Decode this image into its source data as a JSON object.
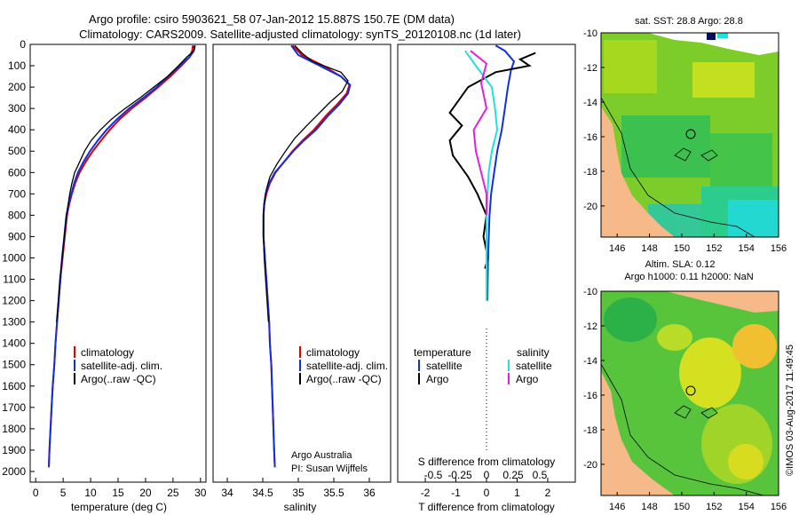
{
  "title": {
    "line1": "Argo profile: csiro 5903621_58 07-Jan-2012 15.887S 150.7E (DM data)",
    "line2": "Climatology: CARS2009. Satellite-adjusted climatology: synTS_20120108.nc (1d later)"
  },
  "colors": {
    "climatology": "#e00000",
    "satellite": "#1030e0",
    "argo": "#000000",
    "salinity_satellite": "#20e0e0",
    "salinity_argo": "#e020e0"
  },
  "chart_data": [
    {
      "type": "line",
      "id": "temperature",
      "xlabel": "temperature (deg C)",
      "ylabel": "",
      "xlim": [
        -1,
        31
      ],
      "ylim": [
        2050,
        0
      ],
      "xticks": [
        "0",
        "5",
        "10",
        "15",
        "20",
        "25",
        "30"
      ],
      "yticks": [
        "0",
        "100",
        "200",
        "300",
        "400",
        "500",
        "600",
        "700",
        "800",
        "900",
        "1000",
        "1100",
        "1200",
        "1300",
        "1400",
        "1500",
        "1600",
        "1700",
        "1800",
        "1900",
        "2000"
      ],
      "legend": [
        "climatology",
        "satellite-adj. clim.",
        "Argo(..raw -QC)"
      ],
      "series": [
        {
          "name": "climatology",
          "color": "#e00000",
          "points": [
            [
              28.6,
              5
            ],
            [
              28.5,
              30
            ],
            [
              28.0,
              60
            ],
            [
              26.5,
              100
            ],
            [
              24.5,
              150
            ],
            [
              22.3,
              200
            ],
            [
              20.0,
              250
            ],
            [
              17.5,
              300
            ],
            [
              15.3,
              350
            ],
            [
              13.5,
              400
            ],
            [
              11.9,
              450
            ],
            [
              10.4,
              500
            ],
            [
              9.1,
              550
            ],
            [
              8.0,
              600
            ],
            [
              7.2,
              650
            ],
            [
              6.6,
              700
            ],
            [
              6.1,
              750
            ],
            [
              5.7,
              800
            ],
            [
              5.3,
              900
            ],
            [
              4.9,
              1000
            ],
            [
              4.5,
              1100
            ],
            [
              4.2,
              1200
            ],
            [
              3.9,
              1300
            ],
            [
              3.6,
              1400
            ],
            [
              3.4,
              1500
            ],
            [
              3.1,
              1600
            ],
            [
              2.9,
              1700
            ],
            [
              2.7,
              1800
            ],
            [
              2.5,
              1900
            ],
            [
              2.4,
              1980
            ]
          ]
        },
        {
          "name": "satellite-adj. clim.",
          "color": "#1030e0",
          "points": [
            [
              29.0,
              5
            ],
            [
              28.8,
              30
            ],
            [
              28.0,
              60
            ],
            [
              26.2,
              100
            ],
            [
              24.1,
              150
            ],
            [
              22.0,
              200
            ],
            [
              19.6,
              250
            ],
            [
              17.0,
              300
            ],
            [
              14.8,
              350
            ],
            [
              12.9,
              400
            ],
            [
              11.3,
              450
            ],
            [
              9.9,
              500
            ],
            [
              8.7,
              550
            ],
            [
              7.7,
              600
            ],
            [
              7.0,
              650
            ],
            [
              6.5,
              700
            ],
            [
              6.0,
              750
            ],
            [
              5.6,
              800
            ],
            [
              5.2,
              900
            ],
            [
              4.8,
              1000
            ],
            [
              4.5,
              1100
            ],
            [
              4.2,
              1200
            ],
            [
              3.9,
              1300
            ],
            [
              3.6,
              1400
            ],
            [
              3.4,
              1500
            ],
            [
              3.1,
              1600
            ],
            [
              2.9,
              1700
            ],
            [
              2.7,
              1800
            ],
            [
              2.5,
              1900
            ],
            [
              2.4,
              1980
            ]
          ]
        },
        {
          "name": "Argo(..raw -QC)",
          "color": "#000000",
          "points": [
            [
              28.9,
              5
            ],
            [
              28.8,
              30
            ],
            [
              27.5,
              60
            ],
            [
              26.0,
              100
            ],
            [
              24.0,
              150
            ],
            [
              21.5,
              200
            ],
            [
              19.0,
              250
            ],
            [
              16.3,
              300
            ],
            [
              13.8,
              350
            ],
            [
              11.8,
              400
            ],
            [
              10.1,
              450
            ],
            [
              8.9,
              500
            ],
            [
              8.0,
              550
            ],
            [
              7.1,
              600
            ],
            [
              6.6,
              650
            ],
            [
              6.2,
              700
            ],
            [
              5.9,
              750
            ],
            [
              5.6,
              800
            ],
            [
              5.2,
              900
            ],
            [
              4.8,
              1000
            ],
            [
              4.4,
              1100
            ],
            [
              4.1,
              1200
            ],
            [
              3.8,
              1300
            ]
          ]
        }
      ]
    },
    {
      "type": "line",
      "id": "salinity",
      "xlabel": "salinity",
      "xlim": [
        33.8,
        36.3
      ],
      "ylim": [
        2050,
        0
      ],
      "xticks": [
        "34",
        "34.5",
        "35",
        "35.5",
        "36"
      ],
      "legend": [
        "climatology",
        "satellite-adj. clim.",
        "Argo(..raw -QC)"
      ],
      "annotation": [
        "Argo Australia",
        "PI: Susan Wijffels"
      ],
      "series": [
        {
          "name": "climatology",
          "color": "#e00000",
          "points": [
            [
              34.92,
              5
            ],
            [
              35.05,
              50
            ],
            [
              35.35,
              100
            ],
            [
              35.6,
              150
            ],
            [
              35.72,
              190
            ],
            [
              35.68,
              230
            ],
            [
              35.55,
              280
            ],
            [
              35.4,
              330
            ],
            [
              35.22,
              400
            ],
            [
              35.06,
              450
            ],
            [
              34.92,
              500
            ],
            [
              34.8,
              550
            ],
            [
              34.68,
              600
            ],
            [
              34.6,
              650
            ],
            [
              34.55,
              700
            ],
            [
              34.52,
              750
            ],
            [
              34.51,
              800
            ],
            [
              34.51,
              900
            ],
            [
              34.53,
              1000
            ],
            [
              34.55,
              1100
            ],
            [
              34.57,
              1200
            ],
            [
              34.59,
              1300
            ],
            [
              34.6,
              1400
            ],
            [
              34.62,
              1500
            ],
            [
              34.63,
              1600
            ],
            [
              34.64,
              1700
            ],
            [
              34.65,
              1800
            ],
            [
              34.66,
              1900
            ],
            [
              34.67,
              1980
            ]
          ]
        },
        {
          "name": "satellite-adj. clim.",
          "color": "#1030e0",
          "points": [
            [
              34.9,
              5
            ],
            [
              35.0,
              50
            ],
            [
              35.3,
              100
            ],
            [
              35.6,
              150
            ],
            [
              35.73,
              190
            ],
            [
              35.7,
              230
            ],
            [
              35.58,
              280
            ],
            [
              35.43,
              330
            ],
            [
              35.25,
              400
            ],
            [
              35.08,
              450
            ],
            [
              34.93,
              500
            ],
            [
              34.8,
              550
            ],
            [
              34.67,
              600
            ],
            [
              34.59,
              650
            ],
            [
              34.54,
              700
            ],
            [
              34.52,
              750
            ],
            [
              34.51,
              800
            ],
            [
              34.51,
              900
            ],
            [
              34.53,
              1000
            ],
            [
              34.55,
              1100
            ],
            [
              34.57,
              1200
            ],
            [
              34.59,
              1300
            ],
            [
              34.6,
              1400
            ],
            [
              34.62,
              1500
            ],
            [
              34.63,
              1600
            ],
            [
              34.64,
              1700
            ],
            [
              34.65,
              1800
            ],
            [
              34.66,
              1900
            ],
            [
              34.67,
              1980
            ]
          ]
        },
        {
          "name": "Argo(..raw -QC)",
          "color": "#000000",
          "points": [
            [
              34.95,
              5
            ],
            [
              35.05,
              40
            ],
            [
              35.2,
              80
            ],
            [
              35.6,
              130
            ],
            [
              35.7,
              170
            ],
            [
              35.62,
              220
            ],
            [
              35.45,
              270
            ],
            [
              35.3,
              320
            ],
            [
              35.12,
              380
            ],
            [
              34.95,
              440
            ],
            [
              34.82,
              500
            ],
            [
              34.7,
              560
            ],
            [
              34.6,
              620
            ],
            [
              34.55,
              680
            ],
            [
              34.52,
              740
            ],
            [
              34.51,
              800
            ],
            [
              34.51,
              900
            ],
            [
              34.52,
              1000
            ],
            [
              34.54,
              1100
            ],
            [
              34.56,
              1200
            ],
            [
              34.58,
              1300
            ]
          ]
        }
      ]
    },
    {
      "type": "line",
      "id": "difference",
      "xlabel_top": "S difference from climatology",
      "xlabel_bottom": "T difference from climatology",
      "xlim": [
        -2.9,
        2.9
      ],
      "ylim": [
        2050,
        0
      ],
      "xticks_T": [
        "-2",
        "-1",
        "0",
        "1",
        "2"
      ],
      "xticks_S": [
        "-0.5",
        "-0.25",
        "0",
        "0.25",
        "0.5"
      ],
      "legend_T_title": "temperature",
      "legend_S_title": "salinity",
      "legend_T": [
        "satellite",
        "Argo"
      ],
      "legend_S": [
        "satellite",
        "Argo"
      ],
      "series": [
        {
          "name": "T satellite",
          "color": "#1030e0",
          "xaxis": "T",
          "points": [
            [
              0.3,
              5
            ],
            [
              0.6,
              30
            ],
            [
              0.9,
              80
            ],
            [
              0.8,
              120
            ],
            [
              0.7,
              200
            ],
            [
              0.6,
              300
            ],
            [
              0.5,
              400
            ],
            [
              0.35,
              500
            ],
            [
              0.25,
              600
            ],
            [
              0.15,
              700
            ],
            [
              0.1,
              800
            ],
            [
              0.05,
              1000
            ],
            [
              0.03,
              1200
            ]
          ]
        },
        {
          "name": "T Argo",
          "color": "#000000",
          "xaxis": "T",
          "points": [
            [
              1.6,
              40
            ],
            [
              1.1,
              70
            ],
            [
              1.4,
              100
            ],
            [
              0.3,
              130
            ],
            [
              -0.6,
              200
            ],
            [
              -1.2,
              320
            ],
            [
              -0.8,
              380
            ],
            [
              -1.2,
              450
            ],
            [
              -1.1,
              520
            ],
            [
              -0.6,
              620
            ],
            [
              -0.3,
              700
            ],
            [
              0.0,
              800
            ],
            [
              -0.1,
              900
            ],
            [
              0.05,
              1000
            ],
            [
              -0.05,
              1050
            ]
          ]
        },
        {
          "name": "S satellite",
          "color": "#20e0e0",
          "xaxis": "S",
          "points": [
            [
              -0.2,
              30
            ],
            [
              -0.1,
              100
            ],
            [
              0.05,
              200
            ],
            [
              0.08,
              300
            ],
            [
              0.1,
              400
            ],
            [
              0.05,
              500
            ],
            [
              0.02,
              600
            ],
            [
              0.0,
              800
            ],
            [
              0.0,
              1200
            ]
          ]
        },
        {
          "name": "S Argo",
          "color": "#e020e0",
          "xaxis": "S",
          "points": [
            [
              -0.15,
              30
            ],
            [
              0.0,
              90
            ],
            [
              -0.05,
              180
            ],
            [
              0.0,
              300
            ],
            [
              -0.12,
              400
            ],
            [
              -0.1,
              500
            ],
            [
              -0.05,
              600
            ],
            [
              0.0,
              700
            ],
            [
              0.0,
              800
            ]
          ]
        }
      ]
    }
  ],
  "maps": {
    "sst": {
      "title": "sat. SST: 28.8 Argo: 28.8",
      "xticks": [
        "146",
        "148",
        "150",
        "152",
        "154",
        "156"
      ],
      "yticks": [
        "-10",
        "-12",
        "-14",
        "-16",
        "-18",
        "-20"
      ]
    },
    "sla": {
      "title_line1": "Altim. SLA: 0.12",
      "title_line2": "Argo h1000: 0.11 h2000: NaN",
      "xticks": [
        "146",
        "148",
        "150",
        "152",
        "154",
        "156"
      ],
      "yticks": [
        "-10",
        "-12",
        "-14",
        "-16",
        "-18",
        "-20"
      ]
    }
  },
  "footer": {
    "stamp": "©IMOS 03-Aug-2017 11:49:45"
  }
}
